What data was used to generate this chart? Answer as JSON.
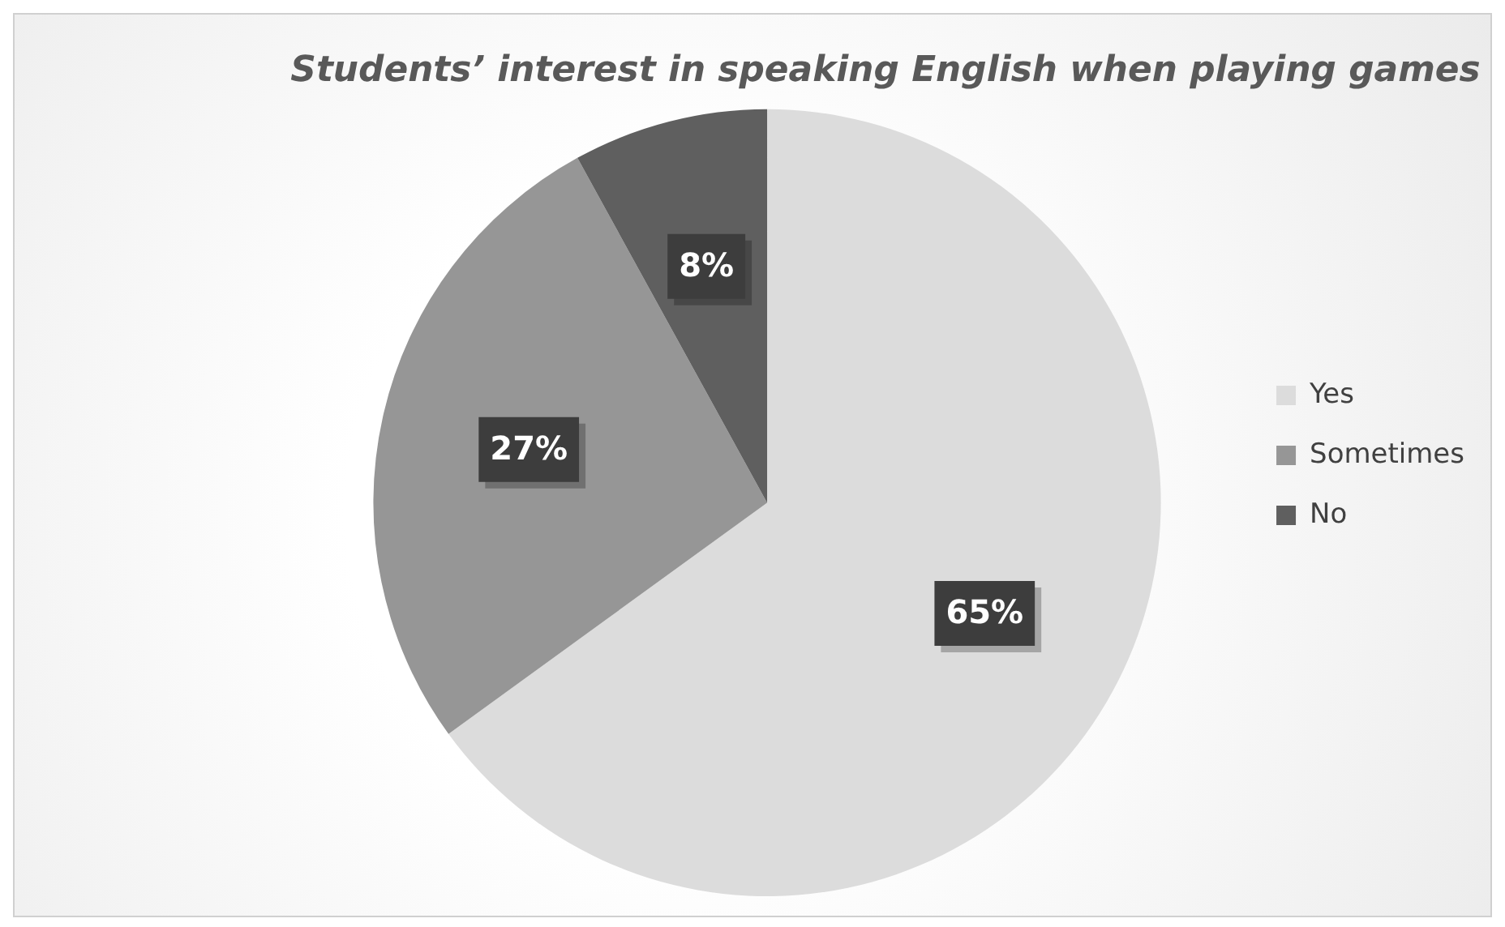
{
  "chart_data": {
    "type": "pie",
    "title": "Students’ interest in speaking English when playing games",
    "categories": [
      "Yes",
      "Sometimes",
      "No"
    ],
    "values": [
      65,
      27,
      8
    ],
    "colors": [
      "#dcdcdc",
      "#969696",
      "#5f5f5f"
    ],
    "value_labels": [
      "65%",
      "27%",
      "8%"
    ],
    "legend": "right"
  }
}
